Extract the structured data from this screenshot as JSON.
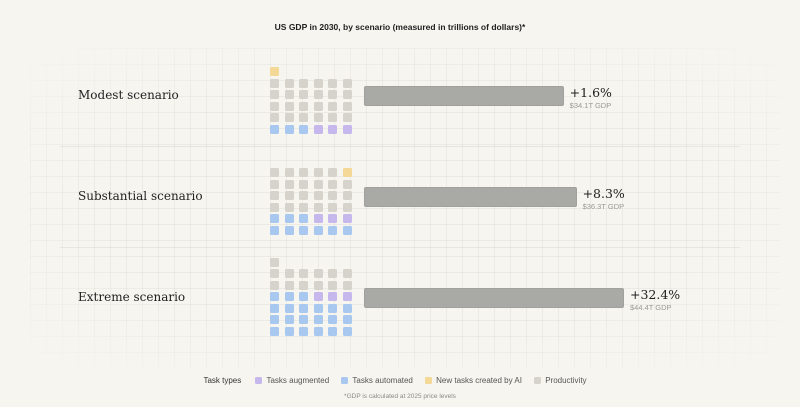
{
  "title": "US GDP in 2030, by scenario (measured in trillions of dollars)*",
  "legend": {
    "title": "Task types",
    "items": [
      {
        "label": "Tasks augmented",
        "color": "#c6b8ec"
      },
      {
        "label": "Tasks automated",
        "color": "#a9c8ef"
      },
      {
        "label": "New tasks created by AI",
        "color": "#f4d896"
      },
      {
        "label": "Productivity",
        "color": "#d6d3cc"
      }
    ]
  },
  "footnote": "*GDP is calculated at 2025 price levels",
  "chart_data": {
    "type": "bar",
    "title": "US GDP in 2030, by scenario (measured in trillions of dollars)*",
    "categories": [
      "Modest scenario",
      "Substantial scenario",
      "Extreme scenario"
    ],
    "values": [
      34.1,
      36.3,
      44.4
    ],
    "unit": "T",
    "growth_labels": [
      "+1.6%",
      "+8.3%",
      "+32.4%"
    ],
    "gdp_labels": [
      "$34.1T GDP",
      "$36.3T GDP",
      "$44.4T GDP"
    ],
    "task_grids": [
      {
        "new": 1,
        "productivity": 24,
        "augmented": 3,
        "automated": 3
      },
      {
        "new": 1,
        "productivity": 23,
        "augmented": 3,
        "automated": 9
      },
      {
        "productivity": 13,
        "augmented": 3,
        "automated": 21
      }
    ],
    "colors": {
      "bar": "#a9a9a5",
      "productivity": "#d6d3cc",
      "augmented": "#c6b8ec",
      "automated": "#a9c8ef",
      "new": "#f4d896"
    }
  }
}
